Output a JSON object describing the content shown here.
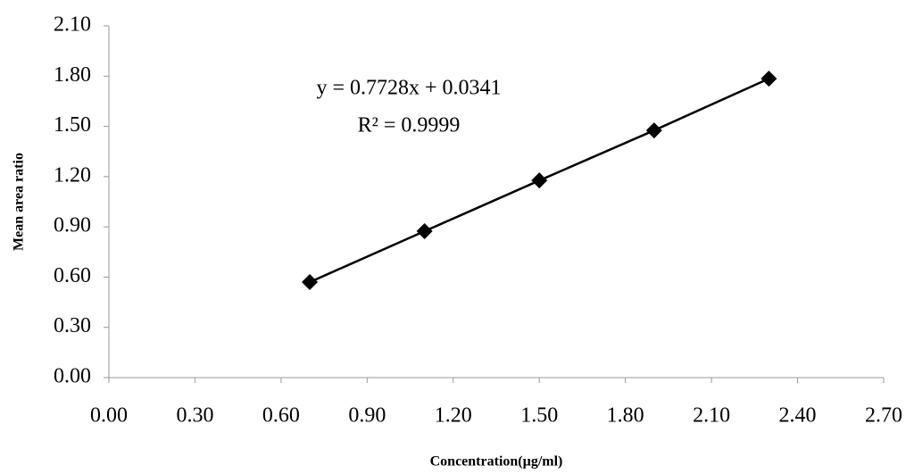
{
  "chart_data": {
    "type": "scatter",
    "x_label": "Concentration(µg/ml)",
    "y_label": "Mean area ratio",
    "annotations": [
      "y = 0.7728x + 0.0341",
      "R² = 0.9999"
    ],
    "x": [
      0.7,
      1.1,
      1.5,
      1.9,
      2.3
    ],
    "values": [
      0.57,
      0.874,
      1.177,
      1.476,
      1.785
    ],
    "color": "#000000",
    "xlim": [
      0,
      2.7
    ],
    "xticks": [
      {
        "value": 0,
        "label": "0.00"
      },
      {
        "value": 0.3,
        "label": "0.30"
      },
      {
        "value": 0.6,
        "label": "0.60"
      },
      {
        "value": 0.9,
        "label": "0.90"
      },
      {
        "value": 1.2,
        "label": "1.20"
      },
      {
        "value": 1.5,
        "label": "1.50"
      },
      {
        "value": 1.8,
        "label": "1.80"
      },
      {
        "value": 2.1,
        "label": "2.10"
      },
      {
        "value": 2.4,
        "label": "2.40"
      },
      {
        "value": 2.7,
        "label": "2.70"
      }
    ],
    "ylim": [
      0,
      2.1
    ],
    "yticks": [
      {
        "value": 0,
        "label": "0.00"
      },
      {
        "value": 0.3,
        "label": "0.30"
      },
      {
        "value": 0.6,
        "label": "0.60"
      },
      {
        "value": 0.9,
        "label": "0.90"
      },
      {
        "value": 1.2,
        "label": "1.20"
      },
      {
        "value": 1.5,
        "label": "1.50"
      },
      {
        "value": 1.8,
        "label": "1.80"
      },
      {
        "value": 2.1,
        "label": "2.10"
      }
    ],
    "grid": false
  }
}
